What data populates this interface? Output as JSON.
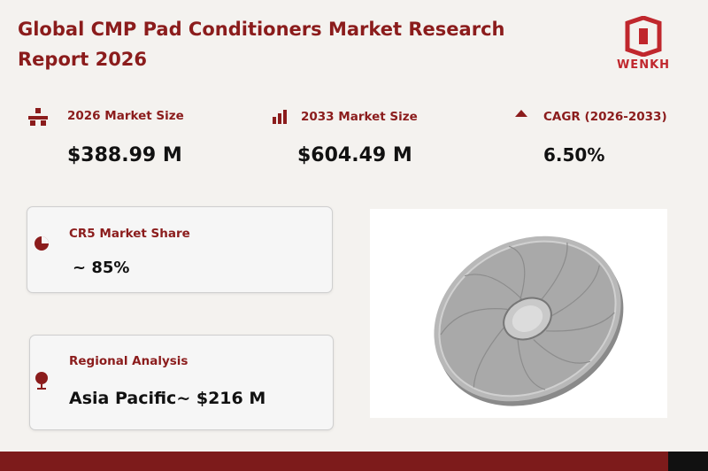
{
  "header": {
    "title": "Global CMP Pad Conditioners Market Research Report 2026",
    "logo": "WENKH"
  },
  "stats": [
    {
      "label": "2026 Market Size",
      "value": "$388.99 M"
    },
    {
      "label": "2033 Market Size",
      "value": "$604.49 M"
    },
    {
      "label": "CAGR (2026-2033)",
      "value": "6.50%"
    }
  ],
  "cards": [
    {
      "label": "CR5 Market Share",
      "value": "~ 85%"
    },
    {
      "label": "Regional Analysis",
      "value": "Asia Pacific~ $216 M"
    }
  ]
}
